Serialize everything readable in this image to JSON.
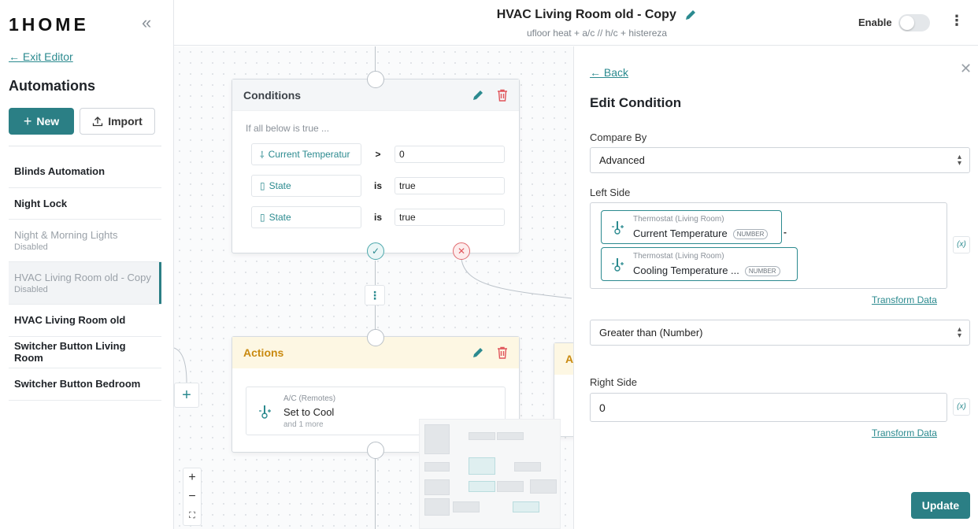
{
  "app": {
    "logo": "1HOME",
    "collapse_icon": "double-chevron-left-icon"
  },
  "sidebar": {
    "exit_label": "← Exit Editor",
    "section_title": "Automations",
    "new_label": "New",
    "import_label": "Import",
    "items": [
      {
        "name": "Blinds Automation",
        "sub": ""
      },
      {
        "name": "Night Lock",
        "sub": ""
      },
      {
        "name": "Night & Morning Lights",
        "sub": "Disabled"
      },
      {
        "name": "HVAC Living Room old - Copy",
        "sub": "Disabled"
      },
      {
        "name": "HVAC Living Room old",
        "sub": ""
      },
      {
        "name": "Switcher Button Living Room",
        "sub": ""
      },
      {
        "name": "Switcher Button Bedroom",
        "sub": ""
      }
    ]
  },
  "header": {
    "title": "HVAC Living Room old - Copy",
    "subtitle": "ufloor heat + a/c // h/c + histereza",
    "enable_label": "Enable",
    "enabled": false
  },
  "canvas": {
    "conditions": {
      "title": "Conditions",
      "intro": "If all below is true ...",
      "rows": [
        {
          "left": "Current Temperatur",
          "op": ">",
          "value": "0"
        },
        {
          "left": "State",
          "op": "is",
          "value": "true"
        },
        {
          "left": "State",
          "op": "is",
          "value": "true"
        }
      ]
    },
    "actions": {
      "title": "Actions",
      "item_small": "A/C (Remotes)",
      "item_main": "Set to Cool",
      "item_more": "and 1 more",
      "partial_title": "A"
    },
    "zoom": {
      "in": "+",
      "out": "−",
      "fit": "⛶"
    }
  },
  "panel": {
    "back_label": "← Back",
    "title": "Edit Condition",
    "compare_label": "Compare By",
    "compare_value": "Advanced",
    "left_label": "Left Side",
    "left_chips": [
      {
        "source": "Thermostat (Living Room)",
        "name": "Current Temperature",
        "badge": "NUMBER"
      },
      {
        "source": "Thermostat (Living Room)",
        "name": "Cooling Temperature ...",
        "badge": "NUMBER"
      }
    ],
    "left_operator": "-",
    "fx_label": "(x)",
    "transform_label": "Transform Data",
    "comparison_value": "Greater than (Number)",
    "right_label": "Right Side",
    "right_value": "0",
    "update_label": "Update"
  },
  "colors": {
    "accent": "#2b7f85",
    "link": "#2b8a8f",
    "danger": "#e0555b",
    "actions_head": "#fdf7e3"
  }
}
